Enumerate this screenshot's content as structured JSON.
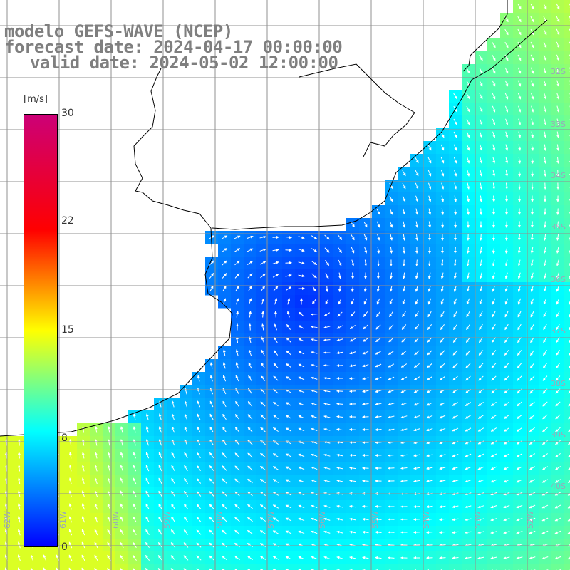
{
  "title": {
    "model_line": "modelo GEFS-WAVE (NCEP)",
    "forecast_line": "forecast date: 2024-04-17 00:00:00",
    "valid_line": "valid date: 2024-05-02 12:00:00"
  },
  "colorbar": {
    "units": "[m/s]",
    "ticks": [
      {
        "id": "tick-30",
        "label": "30"
      },
      {
        "id": "tick-22",
        "label": "22"
      },
      {
        "id": "tick-15",
        "label": "15"
      },
      {
        "id": "tick-8",
        "label": "8"
      },
      {
        "id": "tick-0",
        "label": "0"
      }
    ],
    "range": [
      0,
      30
    ],
    "colors": {
      "c0": "#0000ff",
      "c8": "#00ffff",
      "c15": "#ffff00",
      "c22": "#ff0000",
      "c30": "#cc0077"
    }
  },
  "map": {
    "land_color": "#ffffff",
    "coastline_color": "#000000",
    "gridline_color": "#909090",
    "arrow_color": "#ffffff",
    "lat_labels": [
      "32S",
      "33S",
      "34S",
      "35S",
      "36S",
      "37S",
      "38S",
      "39S",
      "40S"
    ],
    "lon_labels": [
      "62W",
      "61W",
      "60W",
      "59W",
      "58W",
      "57W",
      "56W",
      "55W",
      "54W",
      "53W",
      "52W"
    ]
  }
}
